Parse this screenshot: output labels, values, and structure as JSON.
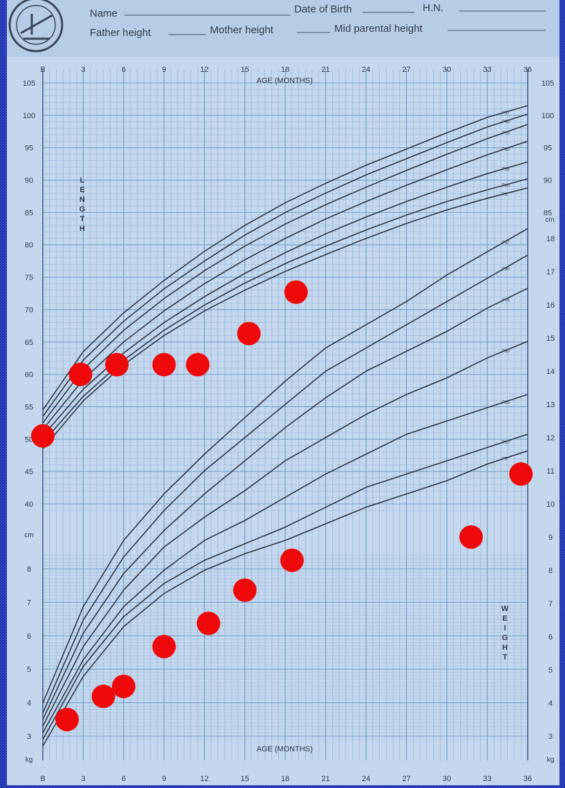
{
  "header": {
    "name_label": "Name",
    "dob_label": "Date of Birth",
    "fileno_label": "H.N.",
    "father_label": "Father height",
    "mother_label": "Mother height",
    "midparental_label": "Mid parental height"
  },
  "colors": {
    "frame": "#1d2fa8",
    "paper": "#c4d7ec",
    "grid": "#6f9ac8",
    "curve": "#2f3644",
    "marker": "#ee0a0a"
  },
  "chart_data": {
    "type": "line",
    "xlabel": "AGE (MONTHS)",
    "x_ticks": [
      "B",
      "3",
      "6",
      "9",
      "12",
      "15",
      "18",
      "21",
      "24",
      "27",
      "30",
      "33",
      "36"
    ],
    "xlim": [
      0,
      36
    ],
    "length_panel": {
      "ylabel": "LENGTH",
      "unit": "cm",
      "ylim": [
        40,
        105
      ],
      "left_ticks": [
        "105",
        "100",
        "95",
        "90",
        "85",
        "80",
        "75",
        "70",
        "65",
        "60",
        "55",
        "50",
        "45",
        "40"
      ],
      "right_ticks": [
        "105",
        "100",
        "95",
        "90",
        "85"
      ],
      "curves": [
        {
          "name": "P97",
          "points": [
            [
              0,
              54.5
            ],
            [
              3,
              63.5
            ],
            [
              6,
              69.5
            ],
            [
              9,
              74.5
            ],
            [
              12,
              79
            ],
            [
              15,
              83
            ],
            [
              18,
              86.5
            ],
            [
              21,
              89.5
            ],
            [
              24,
              92.3
            ],
            [
              27,
              94.8
            ],
            [
              30,
              97.3
            ],
            [
              33,
              99.7
            ],
            [
              36,
              101.5
            ]
          ]
        },
        {
          "name": "P90",
          "points": [
            [
              0,
              53.5
            ],
            [
              3,
              62.2
            ],
            [
              6,
              68.2
            ],
            [
              9,
              73.2
            ],
            [
              12,
              77.5
            ],
            [
              15,
              81.5
            ],
            [
              18,
              85
            ],
            [
              21,
              88
            ],
            [
              24,
              90.8
            ],
            [
              27,
              93.3
            ],
            [
              30,
              95.8
            ],
            [
              33,
              98.2
            ],
            [
              36,
              100.2
            ]
          ]
        },
        {
          "name": "P75",
          "points": [
            [
              0,
              52.5
            ],
            [
              3,
              60.8
            ],
            [
              6,
              66.8
            ],
            [
              9,
              71.7
            ],
            [
              12,
              76
            ],
            [
              15,
              79.8
            ],
            [
              18,
              83.2
            ],
            [
              21,
              86.2
            ],
            [
              24,
              88.9
            ],
            [
              27,
              91.5
            ],
            [
              30,
              94
            ],
            [
              33,
              96.4
            ],
            [
              36,
              98.6
            ]
          ]
        },
        {
          "name": "P50",
          "points": [
            [
              0,
              51.5
            ],
            [
              3,
              59.2
            ],
            [
              6,
              65
            ],
            [
              9,
              69.8
            ],
            [
              12,
              74
            ],
            [
              15,
              77.7
            ],
            [
              18,
              81
            ],
            [
              21,
              84
            ],
            [
              24,
              86.7
            ],
            [
              27,
              89.2
            ],
            [
              30,
              91.6
            ],
            [
              33,
              93.9
            ],
            [
              36,
              96
            ]
          ]
        },
        {
          "name": "P25",
          "points": [
            [
              0,
              50.5
            ],
            [
              3,
              57.7
            ],
            [
              6,
              63.3
            ],
            [
              9,
              68
            ],
            [
              12,
              72
            ],
            [
              15,
              75.6
            ],
            [
              18,
              78.8
            ],
            [
              21,
              81.7
            ],
            [
              24,
              84.3
            ],
            [
              27,
              86.7
            ],
            [
              30,
              88.9
            ],
            [
              33,
              91
            ],
            [
              36,
              92.8
            ]
          ]
        },
        {
          "name": "P10",
          "points": [
            [
              0,
              49.5
            ],
            [
              3,
              56.6
            ],
            [
              6,
              62.2
            ],
            [
              9,
              66.8
            ],
            [
              12,
              70.7
            ],
            [
              15,
              74.1
            ],
            [
              18,
              77.1
            ],
            [
              21,
              79.8
            ],
            [
              24,
              82.3
            ],
            [
              27,
              84.6
            ],
            [
              30,
              86.7
            ],
            [
              33,
              88.5
            ],
            [
              36,
              90.2
            ]
          ]
        },
        {
          "name": "P3",
          "points": [
            [
              0,
              48.5
            ],
            [
              3,
              55.9
            ],
            [
              6,
              61.5
            ],
            [
              9,
              66
            ],
            [
              12,
              69.8
            ],
            [
              15,
              73
            ],
            [
              18,
              75.9
            ],
            [
              21,
              78.5
            ],
            [
              24,
              81
            ],
            [
              27,
              83.3
            ],
            [
              30,
              85.4
            ],
            [
              33,
              87.2
            ],
            [
              36,
              88.8
            ]
          ]
        }
      ],
      "points": [
        [
          0,
          50.5
        ],
        [
          2.8,
          60
        ],
        [
          5.5,
          61.5
        ],
        [
          9,
          61.5
        ],
        [
          11.5,
          61.5
        ],
        [
          15.3,
          66.3
        ],
        [
          18.8,
          72.7
        ]
      ]
    },
    "weight_panel": {
      "ylabel": "WEIGHT",
      "unit": "kg",
      "ylim": [
        2,
        18
      ],
      "left_ticks": [
        "8",
        "7",
        "6",
        "5",
        "4",
        "3"
      ],
      "right_ticks": [
        "18",
        "17",
        "16",
        "15",
        "14",
        "13",
        "12",
        "11",
        "10",
        "9",
        "8",
        "7",
        "6",
        "5",
        "4",
        "3"
      ],
      "curves": [
        {
          "name": "P97",
          "points": [
            [
              0,
              4
            ],
            [
              3,
              6.9
            ],
            [
              6,
              8.9
            ],
            [
              9,
              10.3
            ],
            [
              12,
              11.5
            ],
            [
              15,
              12.6
            ],
            [
              18,
              13.7
            ],
            [
              21,
              14.7
            ],
            [
              24,
              15.4
            ],
            [
              27,
              16.1
            ],
            [
              30,
              16.9
            ],
            [
              33,
              17.6
            ],
            [
              36,
              18.3
            ]
          ]
        },
        {
          "name": "P90",
          "points": [
            [
              0,
              3.7
            ],
            [
              3,
              6.5
            ],
            [
              6,
              8.4
            ],
            [
              9,
              9.8
            ],
            [
              12,
              11
            ],
            [
              15,
              12
            ],
            [
              18,
              13
            ],
            [
              21,
              14
            ],
            [
              24,
              14.7
            ],
            [
              27,
              15.4
            ],
            [
              30,
              16.1
            ],
            [
              33,
              16.8
            ],
            [
              36,
              17.5
            ]
          ]
        },
        {
          "name": "P75",
          "points": [
            [
              0,
              3.5
            ],
            [
              3,
              6.1
            ],
            [
              6,
              7.9
            ],
            [
              9,
              9.2
            ],
            [
              12,
              10.3
            ],
            [
              15,
              11.3
            ],
            [
              18,
              12.3
            ],
            [
              21,
              13.2
            ],
            [
              24,
              14
            ],
            [
              27,
              14.6
            ],
            [
              30,
              15.2
            ],
            [
              33,
              15.9
            ],
            [
              36,
              16.5
            ]
          ]
        },
        {
          "name": "P50",
          "points": [
            [
              0,
              3.3
            ],
            [
              3,
              5.7
            ],
            [
              6,
              7.4
            ],
            [
              9,
              8.7
            ],
            [
              12,
              9.6
            ],
            [
              15,
              10.4
            ],
            [
              18,
              11.3
            ],
            [
              21,
              12
            ],
            [
              24,
              12.7
            ],
            [
              27,
              13.3
            ],
            [
              30,
              13.8
            ],
            [
              33,
              14.4
            ],
            [
              36,
              14.9
            ]
          ]
        },
        {
          "name": "P25",
          "points": [
            [
              0,
              3.1
            ],
            [
              3,
              5.3
            ],
            [
              6,
              6.9
            ],
            [
              9,
              8
            ],
            [
              12,
              8.9
            ],
            [
              15,
              9.5
            ],
            [
              18,
              10.2
            ],
            [
              21,
              10.9
            ],
            [
              24,
              11.5
            ],
            [
              27,
              12.1
            ],
            [
              30,
              12.5
            ],
            [
              33,
              12.9
            ],
            [
              36,
              13.3
            ]
          ]
        },
        {
          "name": "P10",
          "points": [
            [
              0,
              2.9
            ],
            [
              3,
              5.1
            ],
            [
              6,
              6.6
            ],
            [
              9,
              7.6
            ],
            [
              12,
              8.3
            ],
            [
              15,
              8.8
            ],
            [
              18,
              9.3
            ],
            [
              21,
              9.9
            ],
            [
              24,
              10.5
            ],
            [
              27,
              10.9
            ],
            [
              30,
              11.3
            ],
            [
              33,
              11.7
            ],
            [
              36,
              12.1
            ]
          ]
        },
        {
          "name": "P3",
          "points": [
            [
              0,
              2.7
            ],
            [
              3,
              4.8
            ],
            [
              6,
              6.3
            ],
            [
              9,
              7.3
            ],
            [
              12,
              8
            ],
            [
              15,
              8.5
            ],
            [
              18,
              8.9
            ],
            [
              21,
              9.4
            ],
            [
              24,
              9.9
            ],
            [
              27,
              10.3
            ],
            [
              30,
              10.7
            ],
            [
              33,
              11.2
            ],
            [
              36,
              11.6
            ]
          ]
        }
      ],
      "points": [
        [
          1.8,
          3.5
        ],
        [
          4.5,
          4.2
        ],
        [
          6,
          4.5
        ],
        [
          9,
          5.7
        ],
        [
          12.3,
          6.4
        ],
        [
          15,
          7.4
        ],
        [
          18.5,
          8.3
        ],
        [
          31.8,
          9
        ],
        [
          35.5,
          10.9
        ]
      ]
    }
  }
}
